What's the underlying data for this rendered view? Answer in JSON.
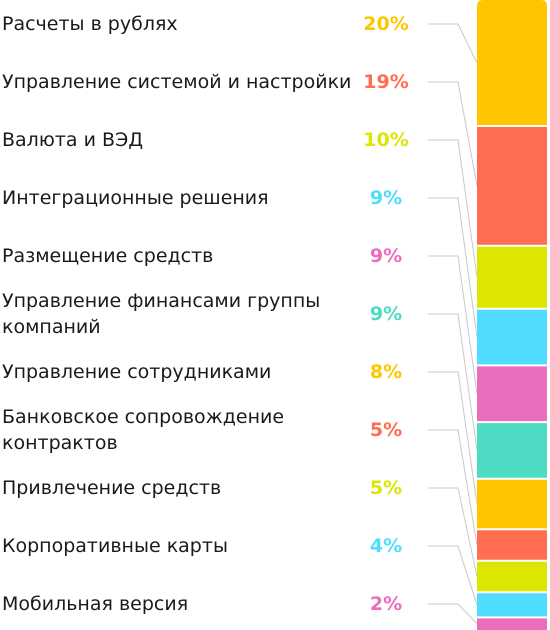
{
  "chart_data": {
    "type": "bar",
    "stacked": true,
    "categories": [
      "Расчеты в рублях",
      "Управление системой и настройки",
      "Валюта и ВЭД",
      "Интеграционные решения",
      "Размещение средств",
      "Управление финансами группы компаний",
      "Управление сотрудниками",
      "Банковское сопровождение контрактов",
      "Привлечение средств",
      "Корпоративные карты",
      "Мобильная версия"
    ],
    "values": [
      20,
      19,
      10,
      9,
      9,
      9,
      8,
      5,
      5,
      4,
      2
    ],
    "value_labels": [
      "20%",
      "19%",
      "10%",
      "9%",
      "9%",
      "9%",
      "8%",
      "5%",
      "5%",
      "4%",
      "2%"
    ],
    "colors": [
      "#ffc600",
      "#ff6e50",
      "#dce600",
      "#50dcff",
      "#eb6ebe",
      "#4ddcc3",
      "#ffc600",
      "#ff6e50",
      "#dce600",
      "#50dcff",
      "#eb6ebe"
    ],
    "label_colors": [
      "#ffc600",
      "#ff6e50",
      "#dce600",
      "#50dcff",
      "#eb6ebe",
      "#4ddcc3",
      "#ffc600",
      "#ff6e50",
      "#dce600",
      "#50dcff",
      "#eb6ebe"
    ],
    "connector_color": "#c8c8c8",
    "title": "",
    "xlabel": "",
    "ylabel": "",
    "grid": false,
    "legend": "none"
  }
}
